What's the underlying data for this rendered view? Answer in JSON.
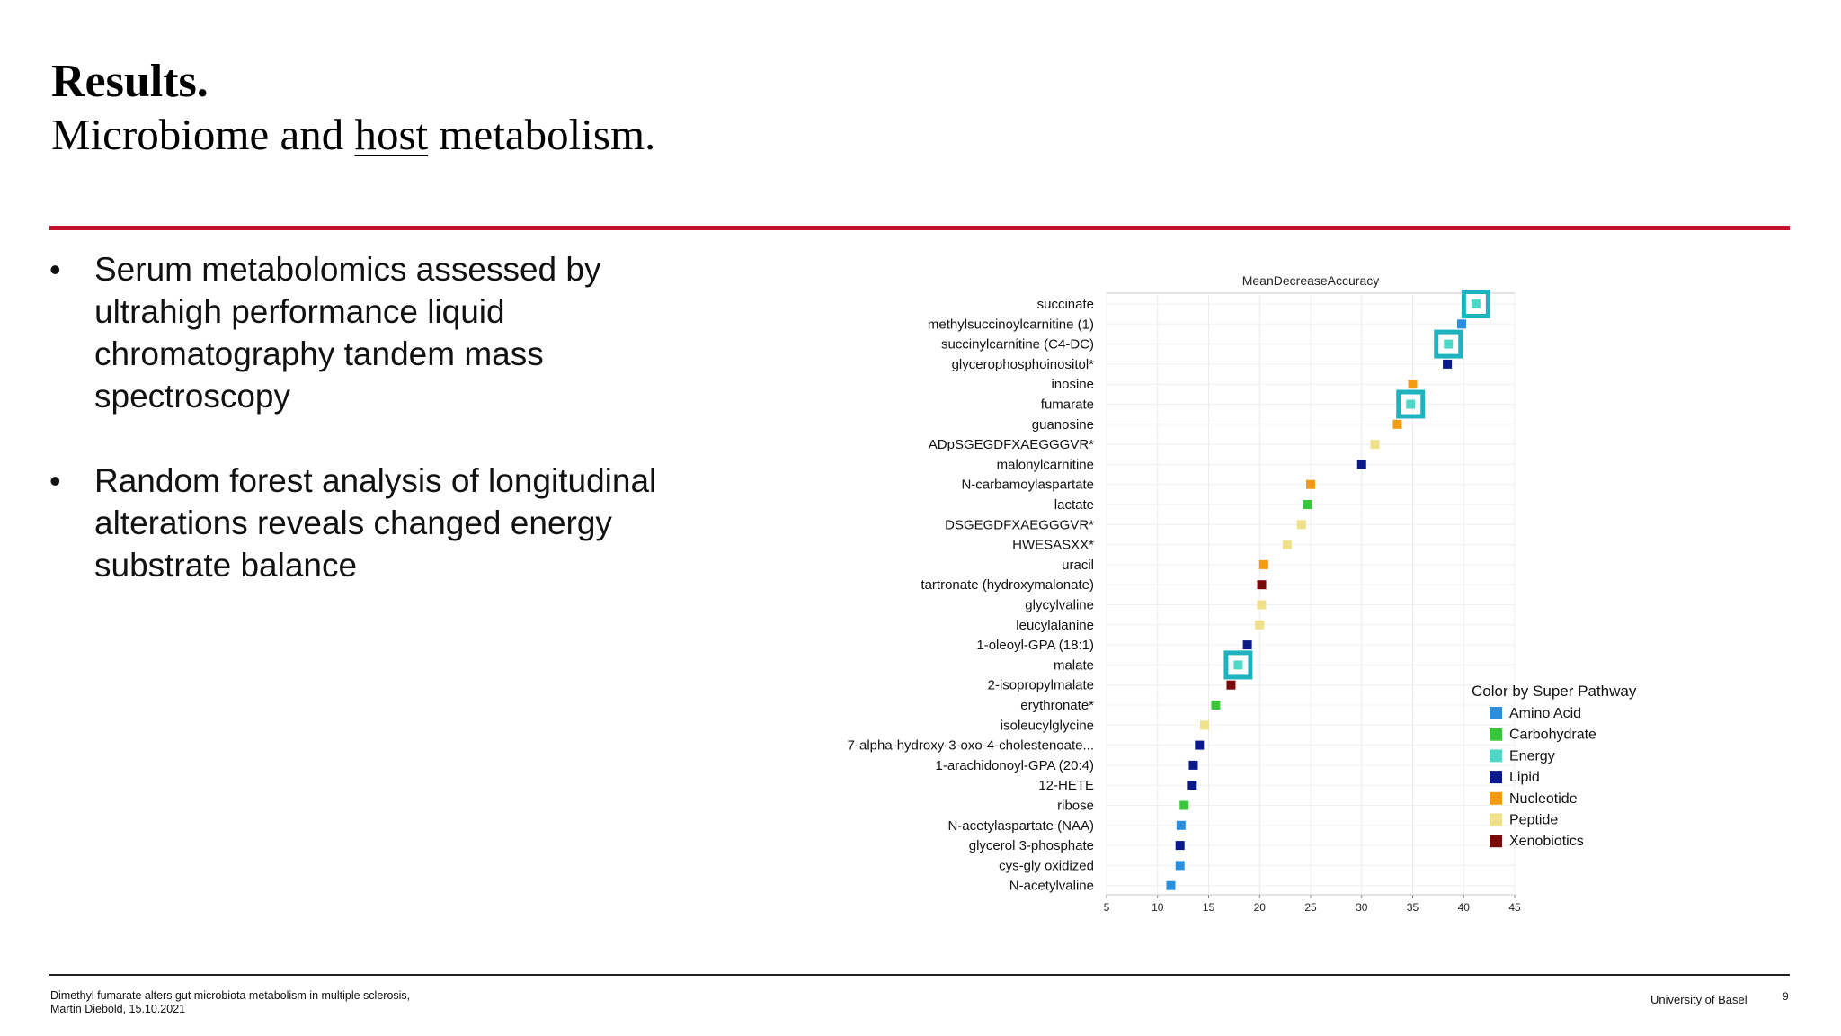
{
  "slide": {
    "title": "Results.",
    "subtitle_before": "Microbiome and ",
    "subtitle_underlined": "host",
    "subtitle_after": " metabolism.",
    "bullets": [
      "Serum metabolomics assessed by ultrahigh performance liquid chromatography tandem mass spectroscopy",
      "Random forest analysis of longitudinal alterations reveals changed energy substrate balance"
    ]
  },
  "footer": {
    "line1": "Dimethyl fumarate alters gut microbiota metabolism in multiple sclerosis,",
    "line2": "Martin Diebold, 15.10.2021",
    "university": "University of Basel",
    "page_number": "9"
  },
  "colors": {
    "accent_rule": "#c8102e",
    "highlight_box": "#1fb3c0",
    "Amino Acid": "#2b8fe0",
    "Carbohydrate": "#3ac63a",
    "Energy": "#4fd8c8",
    "Lipid": "#0a1a8a",
    "Nucleotide": "#f39c12",
    "Peptide": "#f0e08a",
    "Xenobiotics": "#7a0a0a"
  },
  "chart_data": {
    "type": "scatter",
    "title": "MeanDecreaseAccuracy",
    "xlim": [
      5,
      45
    ],
    "xticks": [
      5,
      10,
      15,
      20,
      25,
      30,
      35,
      40,
      45
    ],
    "grid": true,
    "legend_title": "Color by Super Pathway",
    "legend_position": "right",
    "legend": [
      "Amino Acid",
      "Carbohydrate",
      "Energy",
      "Lipid",
      "Nucleotide",
      "Peptide",
      "Xenobiotics"
    ],
    "points": [
      {
        "label": "succinate",
        "value": 41.2,
        "pathway": "Energy",
        "highlighted": true
      },
      {
        "label": "methylsuccinoylcarnitine (1)",
        "value": 39.8,
        "pathway": "Amino Acid"
      },
      {
        "label": "succinylcarnitine (C4-DC)",
        "value": 38.5,
        "pathway": "Energy",
        "highlighted": true
      },
      {
        "label": "glycerophosphoinositol*",
        "value": 38.4,
        "pathway": "Lipid"
      },
      {
        "label": "inosine",
        "value": 35.0,
        "pathway": "Nucleotide"
      },
      {
        "label": "fumarate",
        "value": 34.8,
        "pathway": "Energy",
        "highlighted": true
      },
      {
        "label": "guanosine",
        "value": 33.5,
        "pathway": "Nucleotide"
      },
      {
        "label": "ADpSGEGDFXAEGGGVR*",
        "value": 31.3,
        "pathway": "Peptide"
      },
      {
        "label": "malonylcarnitine",
        "value": 30.0,
        "pathway": "Lipid"
      },
      {
        "label": "N-carbamoylaspartate",
        "value": 25.0,
        "pathway": "Nucleotide"
      },
      {
        "label": "lactate",
        "value": 24.7,
        "pathway": "Carbohydrate"
      },
      {
        "label": "DSGEGDFXAEGGGVR*",
        "value": 24.1,
        "pathway": "Peptide"
      },
      {
        "label": "HWESASXX*",
        "value": 22.7,
        "pathway": "Peptide"
      },
      {
        "label": "uracil",
        "value": 20.4,
        "pathway": "Nucleotide"
      },
      {
        "label": "tartronate (hydroxymalonate)",
        "value": 20.2,
        "pathway": "Xenobiotics"
      },
      {
        "label": "glycylvaline",
        "value": 20.2,
        "pathway": "Peptide"
      },
      {
        "label": "leucylalanine",
        "value": 20.0,
        "pathway": "Peptide"
      },
      {
        "label": "1-oleoyl-GPA (18:1)",
        "value": 18.8,
        "pathway": "Lipid"
      },
      {
        "label": "malate",
        "value": 17.9,
        "pathway": "Energy",
        "highlighted": true
      },
      {
        "label": "2-isopropylmalate",
        "value": 17.2,
        "pathway": "Xenobiotics"
      },
      {
        "label": "erythronate*",
        "value": 15.7,
        "pathway": "Carbohydrate"
      },
      {
        "label": "isoleucylglycine",
        "value": 14.6,
        "pathway": "Peptide"
      },
      {
        "label": "7-alpha-hydroxy-3-oxo-4-cholestenoate...",
        "value": 14.1,
        "pathway": "Lipid"
      },
      {
        "label": "1-arachidonoyl-GPA (20:4)",
        "value": 13.5,
        "pathway": "Lipid"
      },
      {
        "label": "12-HETE",
        "value": 13.4,
        "pathway": "Lipid"
      },
      {
        "label": "ribose",
        "value": 12.6,
        "pathway": "Carbohydrate"
      },
      {
        "label": "N-acetylaspartate (NAA)",
        "value": 12.3,
        "pathway": "Amino Acid"
      },
      {
        "label": "glycerol 3-phosphate",
        "value": 12.2,
        "pathway": "Lipid"
      },
      {
        "label": "cys-gly oxidized",
        "value": 12.2,
        "pathway": "Amino Acid"
      },
      {
        "label": "N-acetylvaline",
        "value": 11.3,
        "pathway": "Amino Acid"
      }
    ]
  }
}
